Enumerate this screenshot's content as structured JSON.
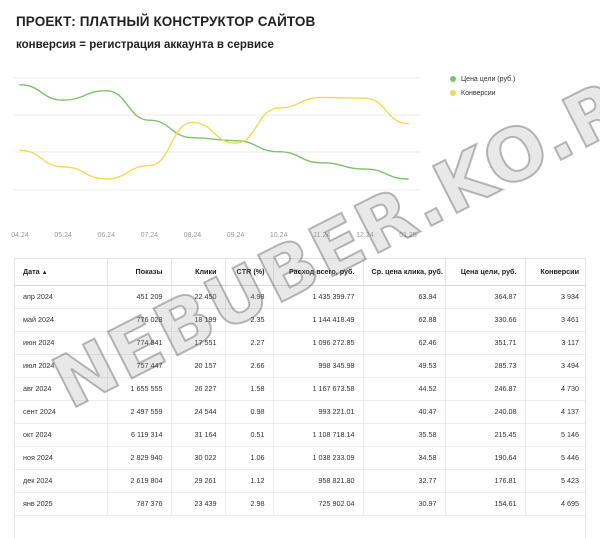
{
  "header": {
    "title": "ПРОЕКТ: ПЛАТНЫЙ КОНСТРУКТОР САЙТОВ",
    "subtitle": "конверсия = регистрация аккаунта в сервисе"
  },
  "chart_data": {
    "type": "line",
    "categories": [
      "04.24",
      "05.24",
      "06.24",
      "07.24",
      "08.24",
      "09.24",
      "10.24",
      "11.24",
      "12.24",
      "01.25"
    ],
    "series": [
      {
        "name": "Цена цели (руб.)",
        "color": "#7cc36b",
        "values": [
          364.87,
          330.66,
          351.71,
          285.73,
          246.87,
          240.08,
          215.45,
          190.64,
          176.81,
          154.61
        ]
      },
      {
        "name": "Конверсии",
        "color": "#f5d85a",
        "values": [
          3934,
          3461,
          3117,
          3494,
          4730,
          4137,
          5146,
          5446,
          5423,
          4695
        ]
      }
    ],
    "legend_position": "top-right",
    "grid": true
  },
  "table": {
    "columns": [
      "Дата",
      "Показы",
      "Клики",
      "CTR (%)",
      "Расход всего, руб.",
      "Ср. цена клика, руб.",
      "Цена цели, руб.",
      "Конверсии"
    ],
    "sort_indicator": "▲",
    "rows": [
      [
        "апр 2024",
        "451 209",
        "22 450",
        "4.98",
        "1 435 399.77",
        "63.94",
        "364.87",
        "3 934"
      ],
      [
        "май 2024",
        "776 028",
        "18 199",
        "2.35",
        "1 144 418.49",
        "62.88",
        "330.66",
        "3 461"
      ],
      [
        "июн 2024",
        "774 841",
        "17 551",
        "2.27",
        "1 096 272.85",
        "62.46",
        "351.71",
        "3 117"
      ],
      [
        "июл 2024",
        "757 447",
        "20 157",
        "2.66",
        "998 345.98",
        "49.53",
        "285.73",
        "3 494"
      ],
      [
        "авг 2024",
        "1 655 555",
        "26 227",
        "1.58",
        "1 167 673.58",
        "44.52",
        "246.87",
        "4 730"
      ],
      [
        "сент 2024",
        "2 497 559",
        "24 544",
        "0.98",
        "993 221.01",
        "40.47",
        "240.08",
        "4 137"
      ],
      [
        "окт 2024",
        "6 119 314",
        "31 164",
        "0.51",
        "1 108 718.14",
        "35.58",
        "215.45",
        "5 146"
      ],
      [
        "ноя 2024",
        "2 829 940",
        "30 022",
        "1.06",
        "1 038 233.09",
        "34.58",
        "190.64",
        "5 446"
      ],
      [
        "дек 2024",
        "2 619 804",
        "29 261",
        "1.12",
        "958 821.80",
        "32.77",
        "176.81",
        "5 423"
      ],
      [
        "янв 2025",
        "787 376",
        "23 439",
        "2.98",
        "725 902.04",
        "30.97",
        "154.61",
        "4 695"
      ]
    ]
  },
  "watermark": "NEBUBER.KO.RU"
}
